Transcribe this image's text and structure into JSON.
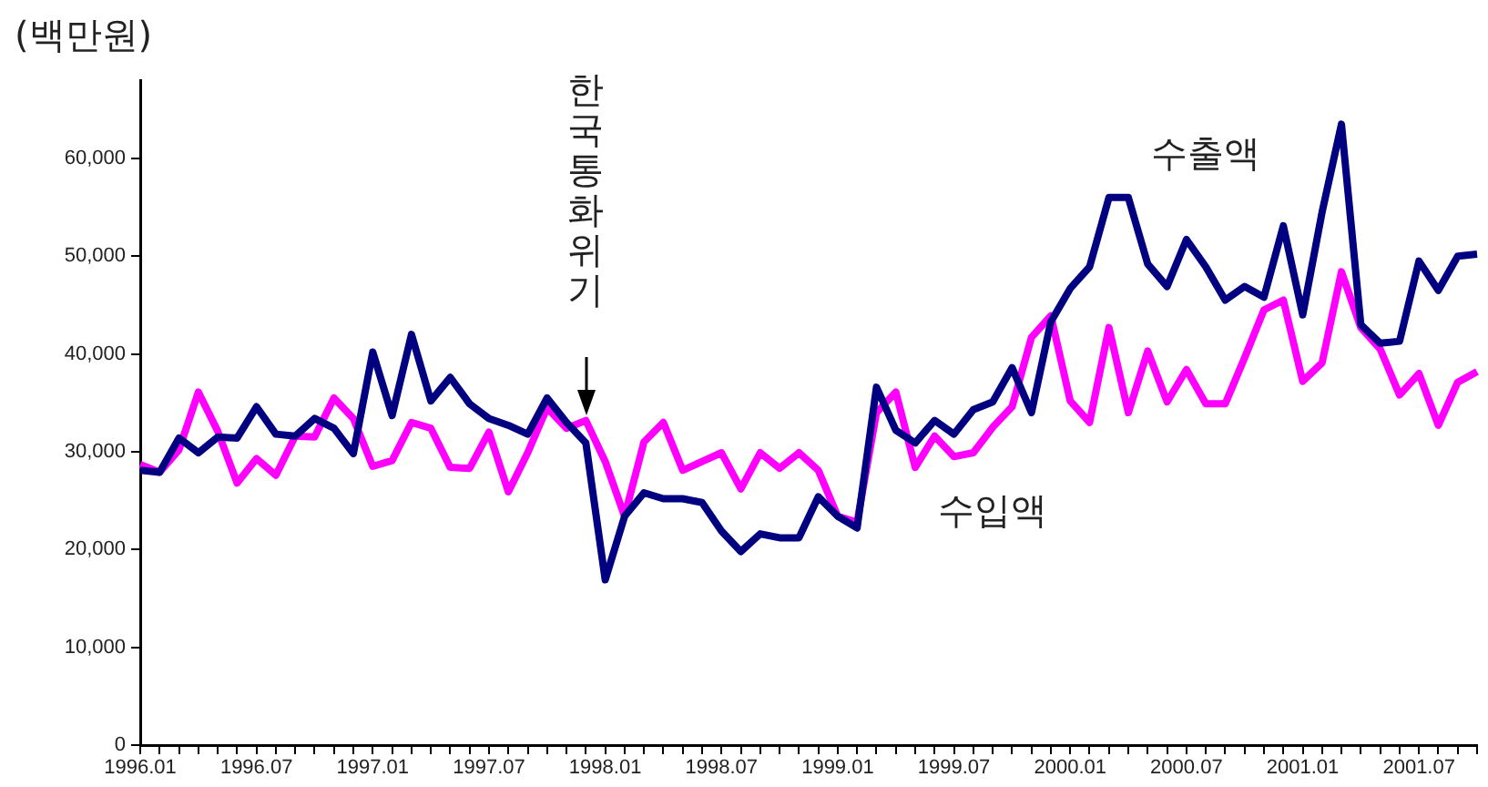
{
  "chart_data": {
    "type": "line",
    "ylabel": "(백만원)",
    "categories": [
      "1996.01",
      null,
      null,
      null,
      null,
      null,
      "1996.07",
      null,
      null,
      null,
      null,
      null,
      "1997.01",
      null,
      null,
      null,
      null,
      null,
      "1997.07",
      null,
      null,
      null,
      null,
      null,
      "1998.01",
      null,
      null,
      null,
      null,
      null,
      "1998.07",
      null,
      null,
      null,
      null,
      null,
      "1999.01",
      null,
      null,
      null,
      null,
      null,
      "1999.07",
      null,
      null,
      null,
      null,
      null,
      "2000.01",
      null,
      null,
      null,
      null,
      null,
      "2000.07",
      null,
      null,
      null,
      null,
      null,
      "2001.01",
      null,
      null,
      null,
      null,
      null,
      "2001.07",
      null,
      null,
      null
    ],
    "series": [
      {
        "name": "수출액",
        "color": "#000080",
        "values": [
          28100,
          27900,
          31400,
          29900,
          31500,
          31400,
          34600,
          31800,
          31600,
          33400,
          32400,
          29800,
          40200,
          33700,
          42000,
          35200,
          37600,
          34900,
          33400,
          32700,
          31800,
          35500,
          33000,
          30900,
          16900,
          23400,
          25800,
          25200,
          25200,
          24800,
          21900,
          19800,
          21600,
          21200,
          21200,
          25400,
          23400,
          22200,
          36600,
          32200,
          30900,
          33200,
          31800,
          34300,
          35100,
          38600,
          34000,
          43300,
          46700,
          48900,
          56000,
          56000,
          49200,
          46900,
          51700,
          48900,
          45500,
          46900,
          45800,
          53100,
          44000,
          54500,
          63500,
          43000,
          41100,
          41300,
          49500,
          46500,
          50000,
          50200
        ]
      },
      {
        "name": "수입액",
        "color": "#ff00ff",
        "values": [
          28700,
          27900,
          30200,
          36100,
          32100,
          26800,
          29300,
          27600,
          31600,
          31500,
          35500,
          33400,
          28500,
          29100,
          33000,
          32400,
          28400,
          28300,
          32000,
          25900,
          29900,
          34500,
          32400,
          33200,
          29000,
          23400,
          31000,
          33000,
          28100,
          29000,
          29900,
          26200,
          29900,
          28300,
          29900,
          28100,
          23400,
          22800,
          34000,
          36100,
          28400,
          31600,
          29500,
          29900,
          32500,
          34600,
          41700,
          43900,
          35200,
          33000,
          42700,
          34000,
          40300,
          35100,
          38400,
          34900,
          34900,
          39600,
          44500,
          45500,
          37200,
          39100,
          48400,
          42700,
          40500,
          35800,
          38000,
          32700,
          37100,
          38200
        ]
      }
    ],
    "annotations": [
      "한국통화위기"
    ],
    "ylim": [
      0,
      68000
    ],
    "yticks": [
      {
        "value": 0,
        "label": "0"
      },
      {
        "value": 10000,
        "label": "10,000"
      },
      {
        "value": 20000,
        "label": "20,000"
      },
      {
        "value": 30000,
        "label": "30,000"
      },
      {
        "value": 40000,
        "label": "40,000"
      },
      {
        "value": 50000,
        "label": "50,000"
      },
      {
        "value": 60000,
        "label": "60,000"
      }
    ],
    "grid": false,
    "legend": false,
    "marker": "none",
    "line_style": "solid"
  }
}
